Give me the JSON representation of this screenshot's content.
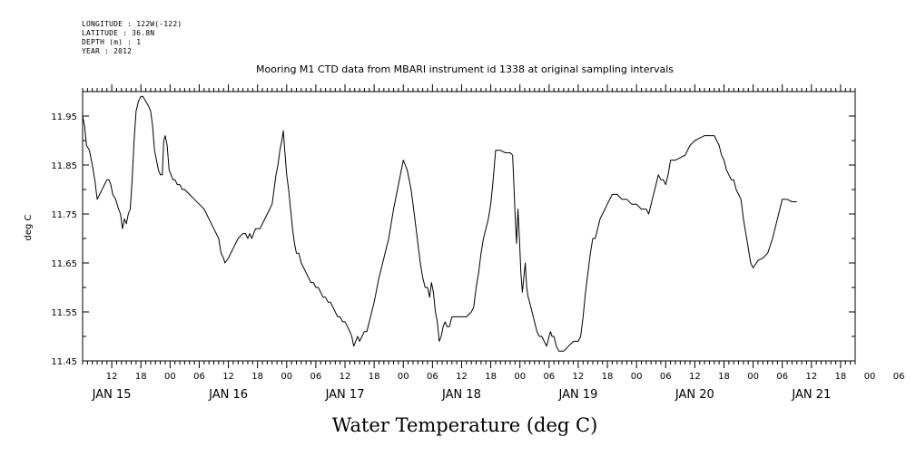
{
  "header": {
    "longitude": "LONGITUDE : 122W(-122)",
    "latitude": "LATITUDE : 36.8N",
    "depth": "DEPTH (m) : 1",
    "year": "YEAR : 2012"
  },
  "chart_data": {
    "type": "line",
    "title": "Mooring M1 CTD data from MBARI instrument id 1338 at original sampling intervals",
    "xlabel": "Water Temperature (deg C)",
    "ylabel": "deg C",
    "ylim": [
      11.45,
      12.0
    ],
    "y_ticks": [
      "11.45",
      "11.55",
      "11.65",
      "11.75",
      "11.85",
      "11.95"
    ],
    "x_range_hours": [
      0,
      159
    ],
    "x_hour_labels": [
      "12",
      "18",
      "00",
      "06",
      "12",
      "18",
      "00",
      "06",
      "12",
      "18",
      "00",
      "06",
      "12",
      "18",
      "00",
      "06",
      "12",
      "18",
      "00",
      "06",
      "12",
      "18",
      "00",
      "06",
      "12",
      "18",
      "00",
      "06",
      "12",
      "18",
      "00"
    ],
    "day_labels": [
      "JAN 15",
      "JAN 16",
      "JAN 17",
      "JAN 18",
      "JAN 19",
      "JAN 20",
      "JAN 21"
    ],
    "grid": false,
    "series": [
      {
        "color": "#000000",
        "points": [
          [
            0,
            11.95
          ],
          [
            0.4,
            11.93
          ],
          [
            0.8,
            11.89
          ],
          [
            1.4,
            11.88
          ],
          [
            2,
            11.85
          ],
          [
            2.5,
            11.82
          ],
          [
            3,
            11.78
          ],
          [
            3.5,
            11.79
          ],
          [
            4,
            11.8
          ],
          [
            4.5,
            11.81
          ],
          [
            5,
            11.82
          ],
          [
            5.4,
            11.82
          ],
          [
            5.8,
            11.81
          ],
          [
            6.2,
            11.79
          ],
          [
            6.8,
            11.78
          ],
          [
            7.4,
            11.76
          ],
          [
            7.8,
            11.75
          ],
          [
            8.2,
            11.72
          ],
          [
            8.6,
            11.74
          ],
          [
            9,
            11.73
          ],
          [
            9.4,
            11.75
          ],
          [
            9.8,
            11.76
          ],
          [
            10.2,
            11.82
          ],
          [
            10.6,
            11.9
          ],
          [
            11,
            11.96
          ],
          [
            11.5,
            11.98
          ],
          [
            12,
            11.99
          ],
          [
            12.4,
            11.99
          ],
          [
            13,
            11.98
          ],
          [
            13.6,
            11.97
          ],
          [
            14,
            11.96
          ],
          [
            14.4,
            11.93
          ],
          [
            14.8,
            11.88
          ],
          [
            15.2,
            11.86
          ],
          [
            15.6,
            11.84
          ],
          [
            16,
            11.83
          ],
          [
            16.4,
            11.83
          ],
          [
            16.7,
            11.9
          ],
          [
            17,
            11.91
          ],
          [
            17.4,
            11.89
          ],
          [
            17.8,
            11.84
          ],
          [
            18.2,
            11.83
          ],
          [
            18.6,
            11.82
          ],
          [
            19,
            11.82
          ],
          [
            19.5,
            11.81
          ],
          [
            20,
            11.81
          ],
          [
            20.5,
            11.8
          ],
          [
            21,
            11.8
          ],
          [
            22,
            11.79
          ],
          [
            23,
            11.78
          ],
          [
            24,
            11.77
          ],
          [
            25,
            11.76
          ],
          [
            26,
            11.74
          ],
          [
            27,
            11.72
          ],
          [
            28,
            11.7
          ],
          [
            28.5,
            11.67
          ],
          [
            29,
            11.66
          ],
          [
            29.3,
            11.65
          ],
          [
            30,
            11.66
          ],
          [
            31,
            11.68
          ],
          [
            32,
            11.7
          ],
          [
            33,
            11.71
          ],
          [
            33.5,
            11.71
          ],
          [
            34,
            11.7
          ],
          [
            34.4,
            11.71
          ],
          [
            34.8,
            11.7
          ],
          [
            35.2,
            11.71
          ],
          [
            35.6,
            11.72
          ],
          [
            36,
            11.72
          ],
          [
            36.5,
            11.72
          ],
          [
            37,
            11.73
          ],
          [
            37.5,
            11.74
          ],
          [
            38,
            11.75
          ],
          [
            38.5,
            11.76
          ],
          [
            39,
            11.77
          ],
          [
            39.4,
            11.8
          ],
          [
            39.8,
            11.83
          ],
          [
            40.2,
            11.85
          ],
          [
            40.6,
            11.88
          ],
          [
            41,
            11.9
          ],
          [
            41.3,
            11.92
          ],
          [
            41.6,
            11.88
          ],
          [
            42,
            11.83
          ],
          [
            42.4,
            11.8
          ],
          [
            42.8,
            11.76
          ],
          [
            43.2,
            11.72
          ],
          [
            43.6,
            11.69
          ],
          [
            44,
            11.67
          ],
          [
            44.5,
            11.67
          ],
          [
            45,
            11.65
          ],
          [
            45.5,
            11.64
          ],
          [
            46,
            11.63
          ],
          [
            46.5,
            11.62
          ],
          [
            47,
            11.61
          ],
          [
            47.5,
            11.61
          ],
          [
            48,
            11.6
          ],
          [
            48.5,
            11.6
          ],
          [
            49,
            11.59
          ],
          [
            49.5,
            11.58
          ],
          [
            50,
            11.58
          ],
          [
            50.5,
            11.57
          ],
          [
            51,
            11.57
          ],
          [
            51.5,
            11.56
          ],
          [
            52,
            11.55
          ],
          [
            52.5,
            11.54
          ],
          [
            53,
            11.54
          ],
          [
            53.5,
            11.53
          ],
          [
            54,
            11.53
          ],
          [
            54.5,
            11.52
          ],
          [
            55,
            11.51
          ],
          [
            55.4,
            11.5
          ],
          [
            55.8,
            11.48
          ],
          [
            56.2,
            11.49
          ],
          [
            56.6,
            11.5
          ],
          [
            57,
            11.49
          ],
          [
            57.5,
            11.5
          ],
          [
            58,
            11.51
          ],
          [
            58.5,
            11.51
          ],
          [
            59,
            11.53
          ],
          [
            60,
            11.57
          ],
          [
            61,
            11.62
          ],
          [
            62,
            11.66
          ],
          [
            63,
            11.7
          ],
          [
            64,
            11.76
          ],
          [
            65,
            11.81
          ],
          [
            65.6,
            11.84
          ],
          [
            66,
            11.86
          ],
          [
            66.4,
            11.85
          ],
          [
            66.8,
            11.84
          ],
          [
            67.2,
            11.82
          ],
          [
            67.6,
            11.8
          ],
          [
            68,
            11.77
          ],
          [
            68.5,
            11.73
          ],
          [
            69,
            11.69
          ],
          [
            69.5,
            11.65
          ],
          [
            70,
            11.62
          ],
          [
            70.5,
            11.6
          ],
          [
            71,
            11.6
          ],
          [
            71.4,
            11.58
          ],
          [
            71.8,
            11.61
          ],
          [
            72.2,
            11.59
          ],
          [
            72.6,
            11.55
          ],
          [
            73,
            11.53
          ],
          [
            73.4,
            11.49
          ],
          [
            73.8,
            11.5
          ],
          [
            74.2,
            11.52
          ],
          [
            74.6,
            11.53
          ],
          [
            75,
            11.52
          ],
          [
            75.5,
            11.52
          ],
          [
            76,
            11.54
          ],
          [
            77,
            11.54
          ],
          [
            78,
            11.54
          ],
          [
            79,
            11.54
          ],
          [
            80,
            11.55
          ],
          [
            80.5,
            11.56
          ],
          [
            81,
            11.6
          ],
          [
            81.5,
            11.63
          ],
          [
            82,
            11.67
          ],
          [
            82.5,
            11.7
          ],
          [
            83,
            11.72
          ],
          [
            83.5,
            11.74
          ],
          [
            84,
            11.77
          ],
          [
            84.5,
            11.82
          ],
          [
            85,
            11.88
          ],
          [
            86,
            11.88
          ],
          [
            87,
            11.875
          ],
          [
            88,
            11.875
          ],
          [
            88.5,
            11.87
          ],
          [
            88.8,
            11.8
          ],
          [
            89,
            11.75
          ],
          [
            89.3,
            11.69
          ],
          [
            89.6,
            11.76
          ],
          [
            89.9,
            11.7
          ],
          [
            90.2,
            11.63
          ],
          [
            90.5,
            11.59
          ],
          [
            90.8,
            11.62
          ],
          [
            91.1,
            11.65
          ],
          [
            91.4,
            11.6
          ],
          [
            91.7,
            11.58
          ],
          [
            92,
            11.57
          ],
          [
            92.5,
            11.55
          ],
          [
            93,
            11.53
          ],
          [
            93.5,
            11.51
          ],
          [
            94,
            11.5
          ],
          [
            94.5,
            11.5
          ],
          [
            95,
            11.49
          ],
          [
            95.5,
            11.48
          ],
          [
            96,
            11.5
          ],
          [
            96.3,
            11.51
          ],
          [
            96.6,
            11.5
          ],
          [
            97,
            11.5
          ],
          [
            97.5,
            11.48
          ],
          [
            98,
            11.47
          ],
          [
            99,
            11.47
          ],
          [
            100,
            11.48
          ],
          [
            101,
            11.49
          ],
          [
            102,
            11.49
          ],
          [
            102.5,
            11.5
          ],
          [
            103,
            11.54
          ],
          [
            103.5,
            11.59
          ],
          [
            104,
            11.63
          ],
          [
            104.5,
            11.67
          ],
          [
            105,
            11.7
          ],
          [
            105.5,
            11.7
          ],
          [
            106,
            11.72
          ],
          [
            106.5,
            11.74
          ],
          [
            107,
            11.75
          ],
          [
            108,
            11.77
          ],
          [
            109,
            11.79
          ],
          [
            110,
            11.79
          ],
          [
            111,
            11.78
          ],
          [
            112,
            11.78
          ],
          [
            113,
            11.77
          ],
          [
            114,
            11.77
          ],
          [
            115,
            11.76
          ],
          [
            116,
            11.76
          ],
          [
            116.5,
            11.75
          ],
          [
            117,
            11.77
          ],
          [
            117.5,
            11.79
          ],
          [
            118,
            11.81
          ],
          [
            118.5,
            11.83
          ],
          [
            119,
            11.82
          ],
          [
            119.5,
            11.82
          ],
          [
            120,
            11.81
          ],
          [
            120.5,
            11.83
          ],
          [
            121,
            11.86
          ],
          [
            121.5,
            11.86
          ],
          [
            122,
            11.86
          ],
          [
            123,
            11.865
          ],
          [
            124,
            11.87
          ],
          [
            124.5,
            11.88
          ],
          [
            125,
            11.89
          ],
          [
            126,
            11.9
          ],
          [
            127,
            11.905
          ],
          [
            128,
            11.91
          ],
          [
            129,
            11.91
          ],
          [
            130,
            11.91
          ],
          [
            130.5,
            11.9
          ],
          [
            131,
            11.89
          ],
          [
            131.5,
            11.87
          ],
          [
            132,
            11.86
          ],
          [
            132.5,
            11.84
          ],
          [
            133,
            11.83
          ],
          [
            133.5,
            11.82
          ],
          [
            134,
            11.82
          ],
          [
            134.5,
            11.8
          ],
          [
            135,
            11.79
          ],
          [
            135.5,
            11.78
          ],
          [
            136,
            11.74
          ],
          [
            136.5,
            11.71
          ],
          [
            137,
            11.68
          ],
          [
            137.5,
            11.65
          ],
          [
            138,
            11.64
          ],
          [
            139,
            11.655
          ],
          [
            140,
            11.66
          ],
          [
            141,
            11.67
          ],
          [
            142,
            11.7
          ],
          [
            143,
            11.74
          ],
          [
            144,
            11.78
          ],
          [
            145,
            11.78
          ],
          [
            146,
            11.775
          ],
          [
            147,
            11.775
          ]
        ]
      }
    ]
  }
}
